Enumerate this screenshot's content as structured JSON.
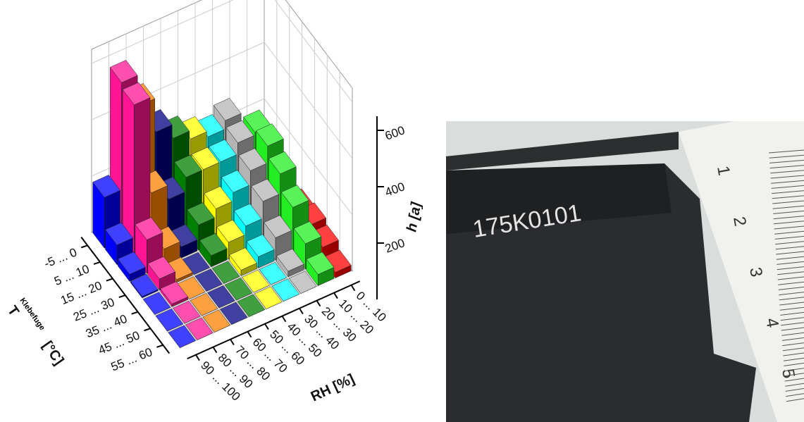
{
  "chart_data": {
    "type": "bar3d",
    "categories": [
      "-5 ... 0",
      "5 ... 10",
      "15 ... 20",
      "25 ... 30",
      "35 ... 40",
      "45 ... 50",
      "55 ... 60"
    ],
    "series": [
      {
        "name": "0 ... 10",
        "color": "#ff0000",
        "values": [
          0,
          10,
          30,
          60,
          70,
          50,
          20
        ]
      },
      {
        "name": "10 ... 20",
        "color": "#22ee22",
        "values": [
          100,
          250,
          260,
          220,
          160,
          90,
          40
        ]
      },
      {
        "name": "20 ... 30",
        "color": "#b4b4b4",
        "values": [
          260,
          240,
          200,
          150,
          80,
          20,
          0
        ]
      },
      {
        "name": "30 ... 40",
        "color": "#00ffff",
        "values": [
          230,
          200,
          150,
          90,
          40,
          0,
          0
        ]
      },
      {
        "name": "40 ... 50",
        "color": "#ffff00",
        "values": [
          250,
          200,
          120,
          60,
          20,
          0,
          0
        ]
      },
      {
        "name": "50 ... 60",
        "color": "#008000",
        "values": [
          280,
          200,
          90,
          40,
          0,
          0,
          0
        ]
      },
      {
        "name": "60 ... 70",
        "color": "#000080",
        "values": [
          330,
          150,
          40,
          0,
          0,
          0,
          0
        ]
      },
      {
        "name": "70 ... 80",
        "color": "#ff8000",
        "values": [
          450,
          200,
          60,
          10,
          0,
          0,
          0
        ]
      },
      {
        "name": "80 ... 90",
        "color": "#ff1493",
        "values": [
          560,
          540,
          120,
          40,
          10,
          0,
          0
        ]
      },
      {
        "name": "90 ... 100",
        "color": "#0000ff",
        "values": [
          180,
          70,
          25,
          5,
          0,
          0,
          0
        ]
      }
    ],
    "zlim": [
      0,
      650
    ],
    "zticks": [
      200,
      400,
      600
    ],
    "x_label": "RH [%]",
    "y_label": "T",
    "y_label_sub": "Klebefuge",
    "y_label_unit": "[°C]",
    "z_label": "h [a]"
  },
  "photo": {
    "print": "175K0101",
    "ruler": [
      "1",
      "2",
      "3",
      "4",
      "5"
    ]
  }
}
